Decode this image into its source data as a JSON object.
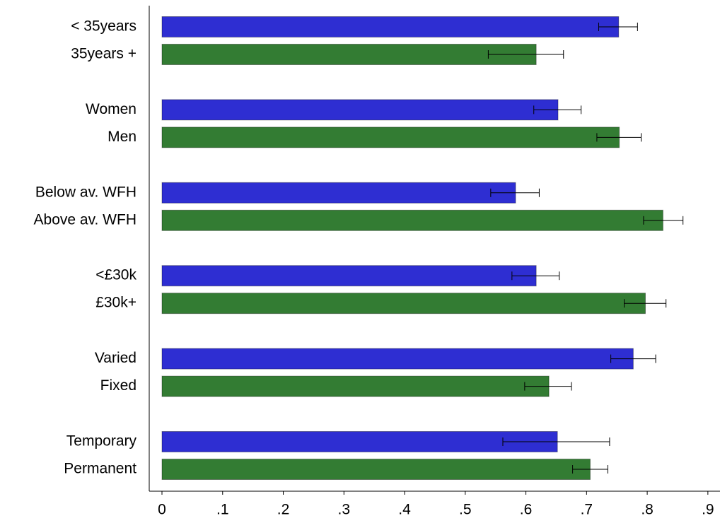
{
  "chart_data": {
    "type": "hbar_error",
    "categories": [
      "< 35years",
      "35years +",
      "Women",
      "Men",
      "Below av. WFH",
      "Above av. WFH",
      "<£30k",
      "£30k+",
      "Varied",
      "Fixed",
      "Temporary",
      "Permanent"
    ],
    "values": [
      0.753,
      0.617,
      0.653,
      0.754,
      0.583,
      0.826,
      0.617,
      0.797,
      0.777,
      0.638,
      0.652,
      0.706
    ],
    "error_low": [
      0.72,
      0.538,
      0.613,
      0.717,
      0.542,
      0.794,
      0.577,
      0.762,
      0.74,
      0.598,
      0.562,
      0.677
    ],
    "error_high": [
      0.784,
      0.662,
      0.691,
      0.79,
      0.622,
      0.859,
      0.655,
      0.831,
      0.814,
      0.675,
      0.738,
      0.735
    ],
    "color_cycle": [
      "#2e2ed2",
      "#337c33"
    ],
    "xlim": [
      -0.021,
      0.92
    ],
    "xticks": [
      0,
      {
        "value": 0.1,
        "label": ".1"
      },
      {
        "value": 0.2,
        "label": ".2"
      },
      {
        "value": 0.3,
        "label": ".3"
      },
      {
        "value": 0.4,
        "label": ".4"
      },
      {
        "value": 0.5,
        "label": ".5"
      },
      {
        "value": 0.6,
        "label": ".6"
      },
      {
        "value": 0.7,
        "label": ".7"
      },
      {
        "value": 0.8,
        "label": ".8"
      },
      {
        "value": 0.9,
        "label": ".9"
      }
    ]
  }
}
